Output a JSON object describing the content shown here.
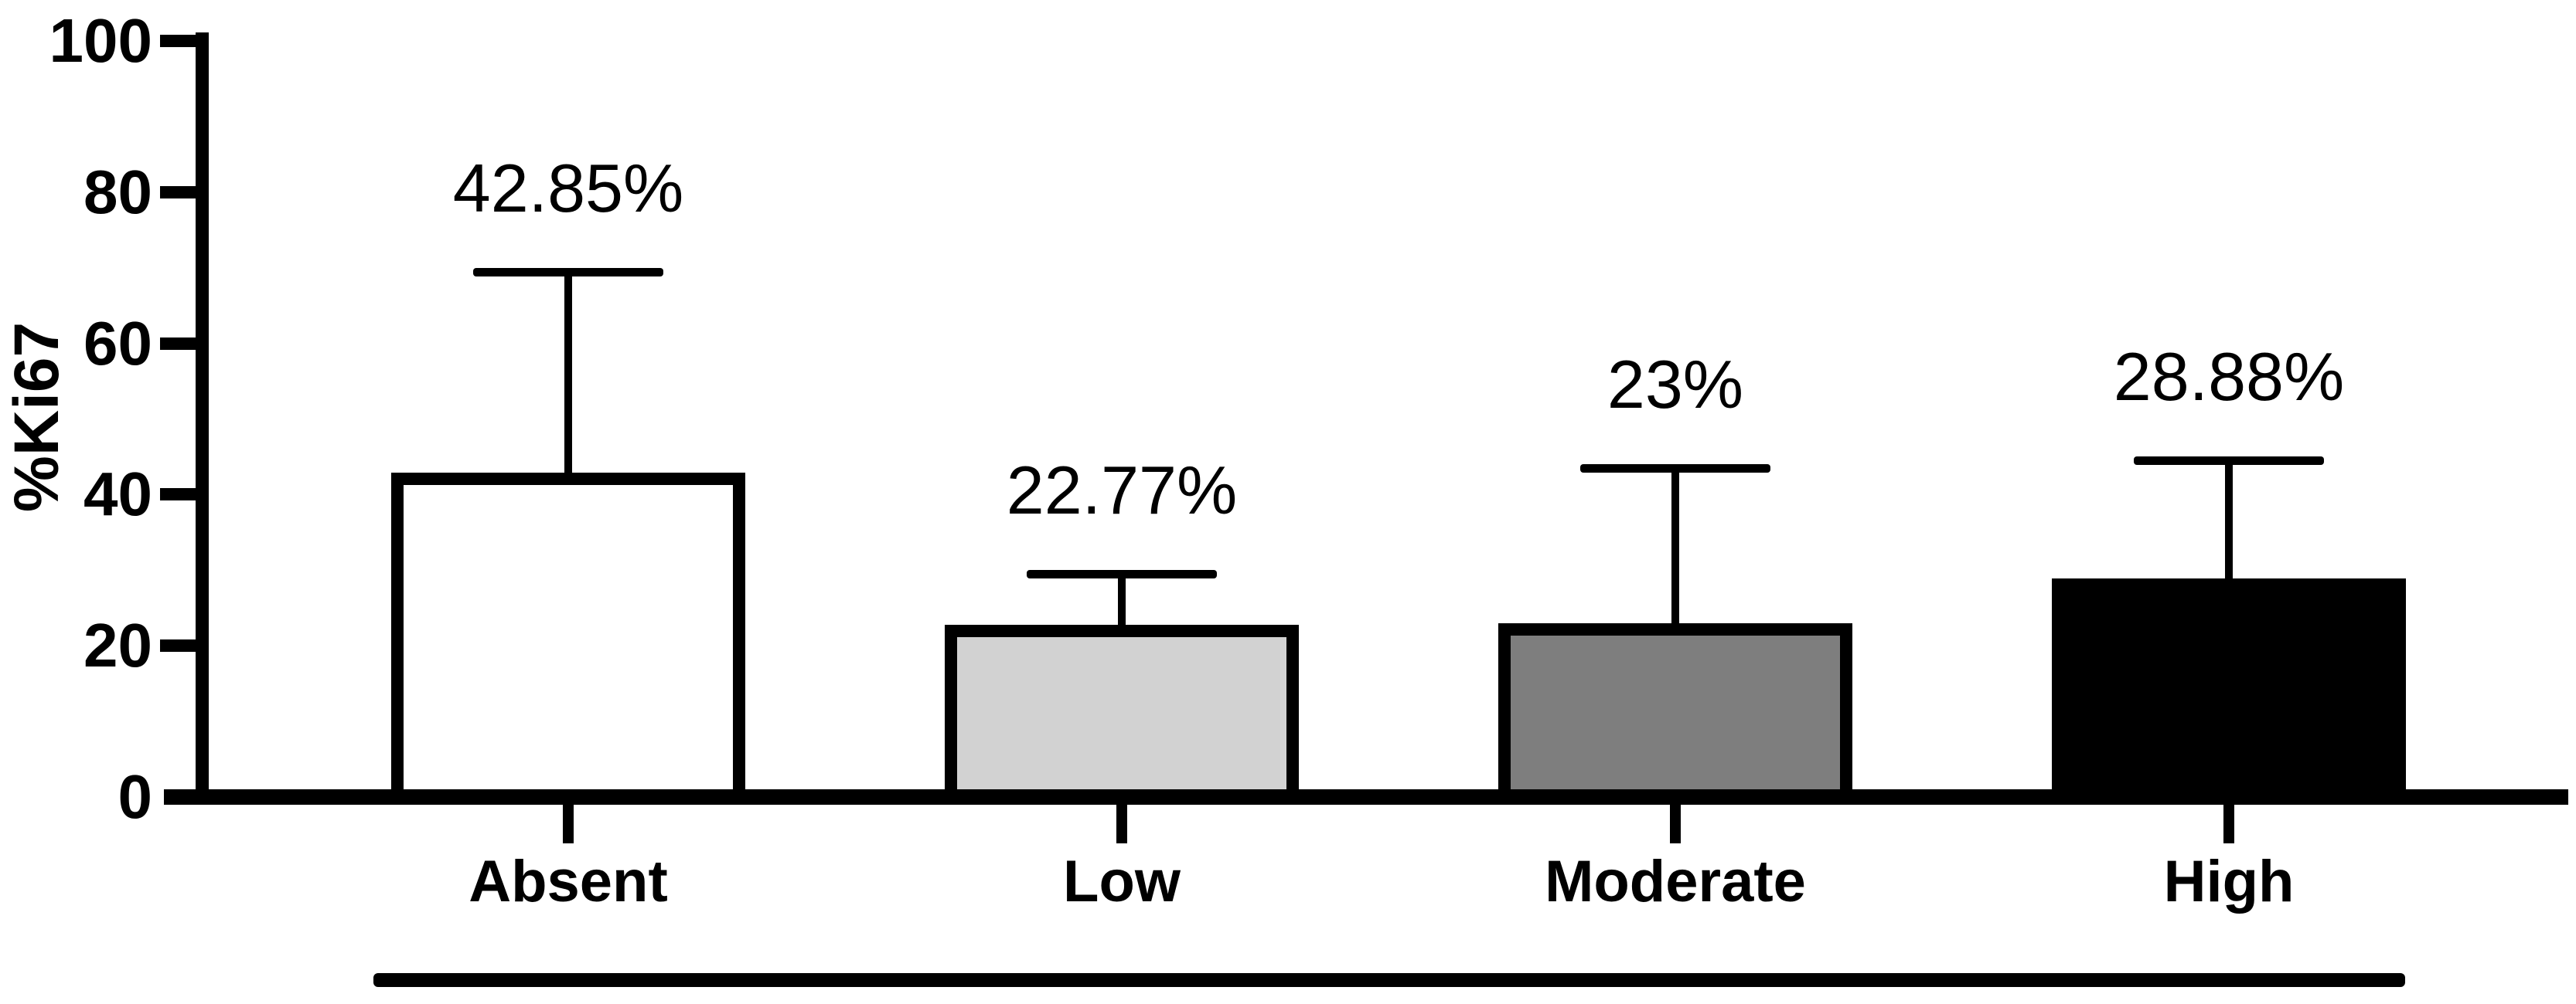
{
  "chart_data": {
    "type": "bar",
    "title": "",
    "ylabel": "%Ki67",
    "xlabel": "",
    "ylim": [
      0,
      100
    ],
    "yticks": [
      0,
      20,
      40,
      60,
      80,
      100
    ],
    "ytick_labels": [
      "0",
      "20",
      "40",
      "60",
      "80",
      "100"
    ],
    "categories": [
      "Absent",
      "Low",
      "Moderate",
      "High"
    ],
    "values": [
      42.85,
      22.77,
      23.0,
      28.88
    ],
    "value_labels": [
      "42.85%",
      "22.77%",
      "23%",
      "28.88%"
    ],
    "error_bar_tops": [
      70,
      30,
      44,
      45
    ],
    "error_bars": "upper whisker with cap only",
    "bar_fill_colors": [
      "#ffffff",
      "#d2d2d2",
      "#7e7e7e",
      "#000000"
    ],
    "bar_border_color": "#000000",
    "axis_color": "#000000",
    "background_color": "#ffffff",
    "grid": false,
    "legend_position": "none",
    "annotations": [
      "long horizontal rule under the category axis labels"
    ]
  }
}
